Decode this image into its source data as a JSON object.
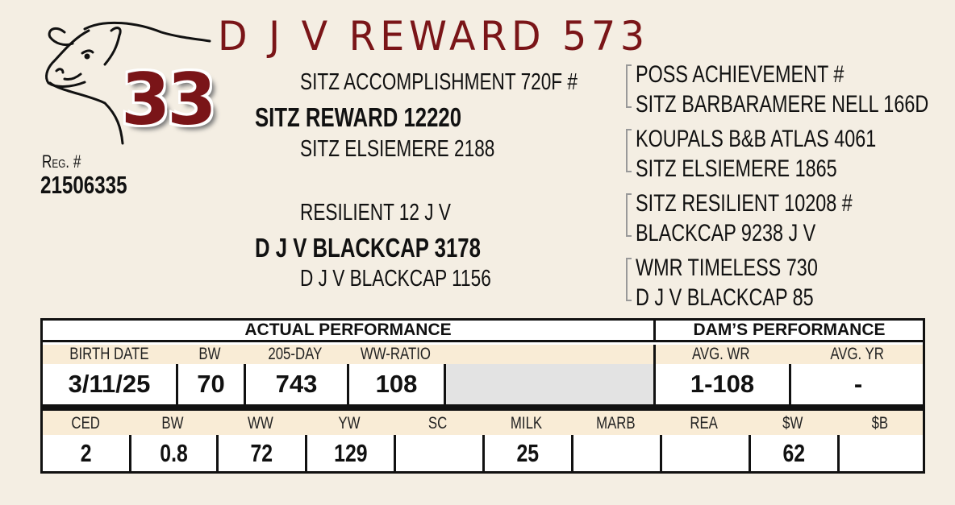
{
  "lot": {
    "title": "D J V REWARD 573",
    "number": "33",
    "reg_label": "Reg. #",
    "reg_number": "21506335"
  },
  "pedigree": {
    "sire": "SITZ REWARD 12220",
    "sire_sire": "SITZ ACCOMPLISHMENT 720F #",
    "sire_dam": "SITZ ELSIEMERE 2188",
    "dam": "D J V BLACKCAP 3178",
    "dam_sire": "RESILIENT 12 J V",
    "dam_dam": "D J V BLACKCAP 1156",
    "grand": [
      "POSS ACHIEVEMENT #",
      "SITZ BARBARAMERE NELL 166D",
      "KOUPALS B&B ATLAS 4061",
      "SITZ ELSIEMERE 1865",
      "SITZ RESILIENT 10208 #",
      "BLACKCAP 9238 J V",
      "WMR TIMELESS 730",
      "D J V BLACKCAP 85"
    ]
  },
  "performance": {
    "actual_header": "ACTUAL PERFORMANCE",
    "dam_header": "DAM’S PERFORMANCE",
    "labels": [
      "BIRTH DATE",
      "BW",
      "205-DAY",
      "WW-RATIO",
      "AVG. WR",
      "AVG. YR"
    ],
    "values": [
      "3/11/25",
      "70",
      "743",
      "108",
      "1-108",
      "-"
    ]
  },
  "epds": {
    "labels": [
      "CED",
      "BW",
      "WW",
      "YW",
      "SC",
      "MILK",
      "MARB",
      "REA",
      "$W",
      "$B"
    ],
    "values": [
      "2",
      "0.8",
      "72",
      "129",
      "",
      "25",
      "",
      "",
      "62",
      ""
    ]
  },
  "colors": {
    "brand": "#7a1518",
    "label_band": "#f9ecd6",
    "blank_cell": "#e3e3e3"
  }
}
